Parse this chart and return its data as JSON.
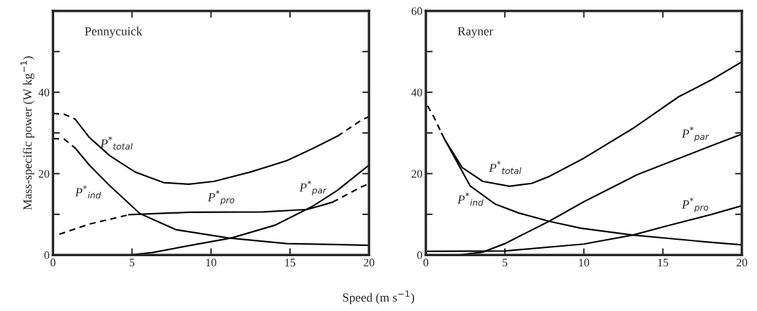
{
  "chart_data": [
    {
      "type": "line",
      "title": "Pennycuick",
      "xlabel": "Speed (m s$^{−1}$)",
      "ylabel": "Mass-specific power (W kg$^{−1}$)",
      "xlim": [
        0,
        20
      ],
      "ylim": [
        0,
        60
      ],
      "xticks": [
        0,
        5,
        10,
        15,
        20
      ],
      "yticks": [
        0,
        {
          "value": 10,
          "label": null
        },
        20,
        {
          "value": 30,
          "label": null
        },
        40,
        {
          "value": 50,
          "label": null
        },
        {
          "value": 60,
          "label": null
        }
      ],
      "series": [
        {
          "color": "#000000",
          "line_style": "dashed",
          "x": [
            0,
            0.7,
            1.4
          ],
          "values": [
            34.8,
            34.6,
            33.4
          ]
        },
        {
          "color": "#000000",
          "line_style": "solid",
          "x": [
            1.4,
            2.3,
            3.6,
            5.2,
            7.0,
            8.6,
            10.2,
            12.5,
            14.8,
            16.4,
            18.0
          ],
          "values": [
            33.4,
            28.9,
            24.4,
            20.4,
            17.8,
            17.4,
            18.1,
            20.4,
            23.2,
            26.1,
            29.2
          ]
        },
        {
          "color": "#000000",
          "line_style": "dashed",
          "x": [
            18.0,
            19.5,
            20.0
          ],
          "values": [
            29.2,
            33.1,
            34.0
          ]
        },
        {
          "color": "#000000",
          "line_style": "dashed",
          "x": [
            0,
            0.7,
            1.4
          ],
          "values": [
            28.6,
            28.5,
            26.3
          ]
        },
        {
          "color": "#000000",
          "line_style": "solid",
          "x": [
            1.4,
            2.3,
            3.6,
            5.5,
            7.8,
            11.1,
            14.8,
            20.0
          ],
          "values": [
            26.3,
            22.1,
            17.0,
            10.2,
            6.2,
            4.2,
            2.8,
            2.4
          ]
        },
        {
          "color": "#000000",
          "line_style": "dashed",
          "x": [
            0.4,
            2.3,
            4.8
          ],
          "values": [
            5.1,
            7.6,
            9.9
          ]
        },
        {
          "color": "#000000",
          "line_style": "solid",
          "x": [
            4.8,
            8.6,
            13.3,
            16.1,
            17.7
          ],
          "values": [
            9.9,
            10.5,
            10.6,
            11.2,
            13.0
          ]
        },
        {
          "color": "#000000",
          "line_style": "dashed",
          "x": [
            17.7,
            19.5,
            20.0
          ],
          "values": [
            13.0,
            16.7,
            17.5
          ]
        },
        {
          "color": "#000000",
          "line_style": "solid",
          "x": [
            4.8,
            6.3,
            8.6,
            11.3,
            14.1,
            16.4,
            18.0,
            20.0
          ],
          "values": [
            0,
            0.6,
            2.3,
            4.2,
            7.4,
            11.9,
            15.9,
            22.1
          ]
        }
      ],
      "annotations": [
        "P$^{*}$$_{total}$",
        "P$^{*}$$_{ind}$",
        "P$^{*}$$_{pro}$",
        "P$^{*}$$_{par}$"
      ]
    },
    {
      "type": "line",
      "title": "Rayner",
      "xlim": [
        0,
        20
      ],
      "ylim": [
        0,
        60
      ],
      "xticks": [
        0,
        5,
        10,
        15,
        20
      ],
      "yticks": [
        0,
        {
          "value": 10,
          "label": null
        },
        20,
        {
          "value": 30,
          "label": null
        },
        40,
        {
          "value": 50,
          "label": null
        },
        60
      ],
      "series": [
        {
          "color": "#000000",
          "line_style": "dashed",
          "x": [
            0.1,
            0.5,
            1.0
          ],
          "values": [
            36.7,
            34.0,
            29.9
          ]
        },
        {
          "color": "#000000",
          "line_style": "solid",
          "x": [
            1.0,
            1.25,
            2.3,
            3.6,
            5.3,
            6.7,
            7.8,
            10.0,
            13.1,
            16.0,
            18.1,
            20.0
          ],
          "values": [
            29.9,
            28.0,
            21.5,
            18.1,
            16.9,
            17.6,
            19.3,
            23.8,
            31.1,
            38.9,
            43.1,
            47.5
          ]
        },
        {
          "color": "#000000",
          "line_style": "solid",
          "x": [
            1.25,
            2.8,
            4.4,
            5.9,
            7.8,
            9.8,
            13.1,
            18.1,
            20.0
          ],
          "values": [
            28.0,
            17.0,
            12.5,
            10.3,
            8.3,
            6.6,
            4.9,
            3.1,
            2.5
          ]
        },
        {
          "color": "#000000",
          "line_style": "solid",
          "x": [
            2.0,
            3.6,
            5.0,
            7.8,
            10.0,
            13.4,
            18.1,
            20.0
          ],
          "values": [
            0,
            0.7,
            2.8,
            8.3,
            13.1,
            19.8,
            26.9,
            29.7
          ]
        },
        {
          "color": "#000000",
          "line_style": "solid",
          "x": [
            0,
            5.0,
            10.0,
            13.1,
            15.3,
            18.1,
            20.0
          ],
          "values": [
            0.9,
            1.0,
            2.7,
            4.9,
            7.2,
            10.0,
            12.1
          ]
        }
      ],
      "annotations": [
        "P$^{*}$$_{total}$",
        "P$^{*}$$_{ind}$",
        "P$^{*}$$_{par}$",
        "P$^{*}$$_{pro}$"
      ]
    }
  ]
}
